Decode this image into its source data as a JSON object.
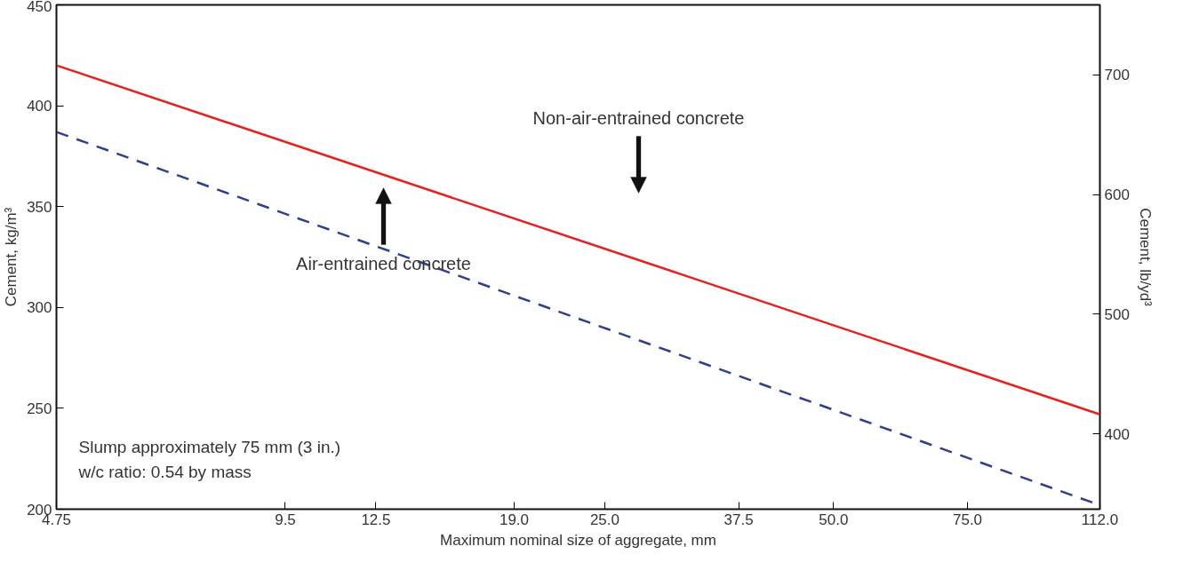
{
  "chart_data": {
    "type": "line",
    "xlabel": "Maximum nominal size of aggregate, mm",
    "ylabel": "Cement, kg/m³",
    "y2label": "Cement, lb/yd³",
    "log": "x",
    "x": [
      4.75,
      112.0
    ],
    "xlim": [
      4.75,
      112.0
    ],
    "xticks": [
      {
        "value": 4.75,
        "label": "4.75"
      },
      {
        "value": 9.5,
        "label": "9.5"
      },
      {
        "value": 12.5,
        "label": "12.5"
      },
      {
        "value": 19,
        "label": "19.0"
      },
      {
        "value": 25,
        "label": "25.0"
      },
      {
        "value": 37.5,
        "label": "37.5"
      },
      {
        "value": 50,
        "label": "50.0"
      },
      {
        "value": 75,
        "label": "75.0"
      },
      {
        "value": 112,
        "label": "112.0"
      }
    ],
    "ylim": [
      200,
      450
    ],
    "yticks": [
      200,
      250,
      300,
      350,
      400,
      450
    ],
    "y2lim": [
      337,
      758.5
    ],
    "y2ticks": [
      400,
      500,
      600,
      700
    ],
    "grid": false,
    "series": [
      {
        "color": "#e8201c",
        "line_style": "solid",
        "values": [
          420,
          247
        ]
      },
      {
        "color": "#2f3f8f",
        "line_style": "dashed",
        "values": [
          387,
          202
        ]
      }
    ],
    "annotations": [
      "Non-air-entrained concrete",
      "Air-entrained concrete",
      "Slump approximately 75 mm (3 in.)",
      "w/c ratio: 0.54 by mass"
    ]
  }
}
